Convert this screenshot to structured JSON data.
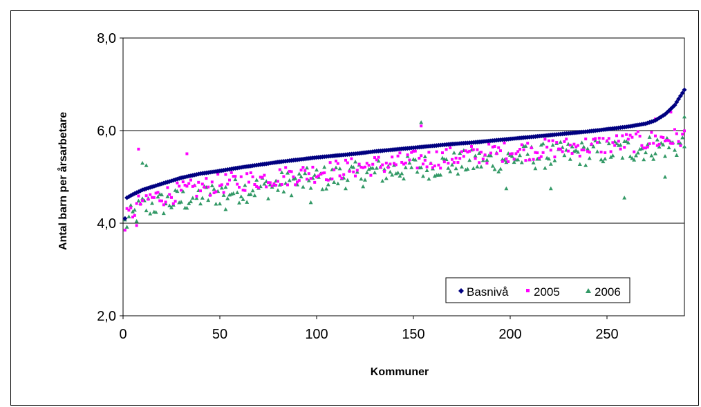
{
  "chart_data": {
    "type": "scatter",
    "title": "",
    "xlabel": "Kommuner",
    "ylabel": "Antal barn per årsarbetare",
    "xlim": [
      0,
      290
    ],
    "ylim": [
      2.0,
      8.0
    ],
    "x_ticks": [
      0,
      50,
      100,
      150,
      200,
      250
    ],
    "y_ticks": [
      "2,0",
      "4,0",
      "6,0",
      "8,0"
    ],
    "grid": "horizontal",
    "legend_position": "bottom-right",
    "series": [
      {
        "name": "Basnivå",
        "color": "#000080",
        "marker": "diamond",
        "description_points": [
          [
            1,
            4.1
          ],
          [
            2,
            4.55
          ],
          [
            5,
            4.62
          ],
          [
            10,
            4.72
          ],
          [
            20,
            4.85
          ],
          [
            30,
            4.98
          ],
          [
            40,
            5.07
          ],
          [
            50,
            5.13
          ],
          [
            60,
            5.2
          ],
          [
            70,
            5.26
          ],
          [
            80,
            5.32
          ],
          [
            90,
            5.37
          ],
          [
            100,
            5.42
          ],
          [
            110,
            5.46
          ],
          [
            120,
            5.5
          ],
          [
            130,
            5.55
          ],
          [
            140,
            5.59
          ],
          [
            150,
            5.63
          ],
          [
            160,
            5.67
          ],
          [
            170,
            5.71
          ],
          [
            180,
            5.74
          ],
          [
            190,
            5.78
          ],
          [
            200,
            5.82
          ],
          [
            210,
            5.86
          ],
          [
            220,
            5.9
          ],
          [
            230,
            5.94
          ],
          [
            240,
            5.98
          ],
          [
            250,
            6.03
          ],
          [
            260,
            6.08
          ],
          [
            270,
            6.15
          ],
          [
            275,
            6.22
          ],
          [
            280,
            6.35
          ],
          [
            285,
            6.55
          ],
          [
            290,
            6.88
          ]
        ]
      },
      {
        "name": "2005",
        "color": "#ff00ff",
        "marker": "square",
        "trend": [
          [
            0,
            4.0
          ],
          [
            10,
            4.5
          ],
          [
            50,
            4.85
          ],
          [
            100,
            5.1
          ],
          [
            150,
            5.35
          ],
          [
            200,
            5.55
          ],
          [
            250,
            5.7
          ],
          [
            290,
            5.85
          ]
        ],
        "spread": 0.22,
        "outliers": [
          [
            8,
            5.6
          ],
          [
            7,
            3.95
          ],
          [
            33,
            5.5
          ],
          [
            154,
            6.1
          ],
          [
            275,
            6.25
          ],
          [
            283,
            6.4
          ]
        ]
      },
      {
        "name": "2006",
        "color": "#339966",
        "marker": "triangle",
        "trend": [
          [
            0,
            3.95
          ],
          [
            10,
            4.35
          ],
          [
            50,
            4.65
          ],
          [
            100,
            4.95
          ],
          [
            150,
            5.2
          ],
          [
            200,
            5.4
          ],
          [
            250,
            5.55
          ],
          [
            290,
            5.7
          ]
        ],
        "spread": 0.28,
        "outliers": [
          [
            154,
            6.18
          ],
          [
            10,
            5.3
          ],
          [
            12,
            5.25
          ],
          [
            97,
            4.45
          ],
          [
            53,
            4.3
          ],
          [
            198,
            4.75
          ],
          [
            221,
            4.75
          ],
          [
            259,
            4.55
          ],
          [
            280,
            5.0
          ],
          [
            290,
            6.3
          ]
        ]
      }
    ]
  }
}
